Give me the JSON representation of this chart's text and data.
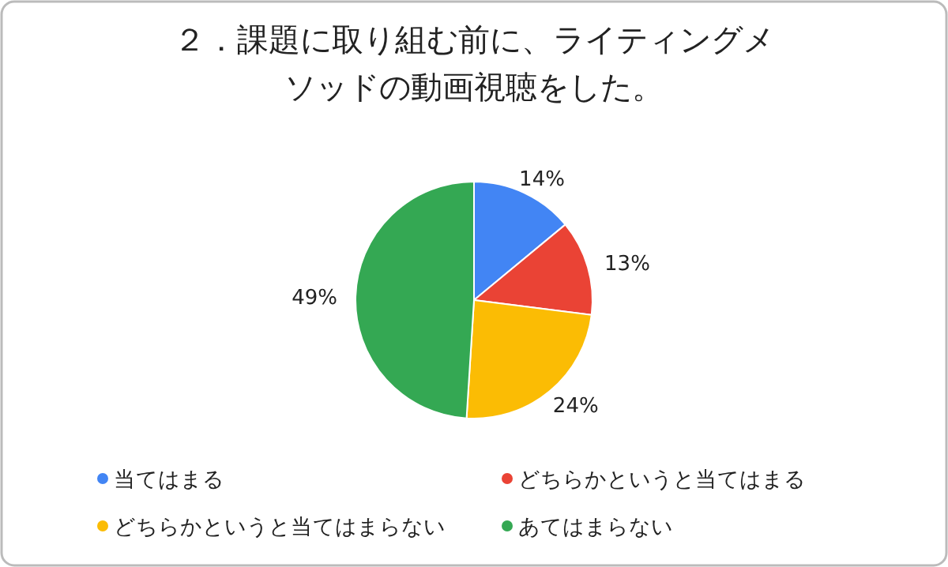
{
  "chart_data": {
    "type": "pie",
    "title": "２．課題に取り組む前に、ライティングメソッドの動画視聴をした。",
    "categories": [
      "当てはまる",
      "どちらかというと当てはまる",
      "どちらかというと当てはまらない",
      "あてはまらない"
    ],
    "values": [
      14,
      13,
      24,
      49
    ],
    "colors": [
      "#4285f4",
      "#ea4335",
      "#fbbc04",
      "#34a853"
    ],
    "value_labels": [
      "14%",
      "13%",
      "24%",
      "49%"
    ],
    "legend": "bottom"
  }
}
